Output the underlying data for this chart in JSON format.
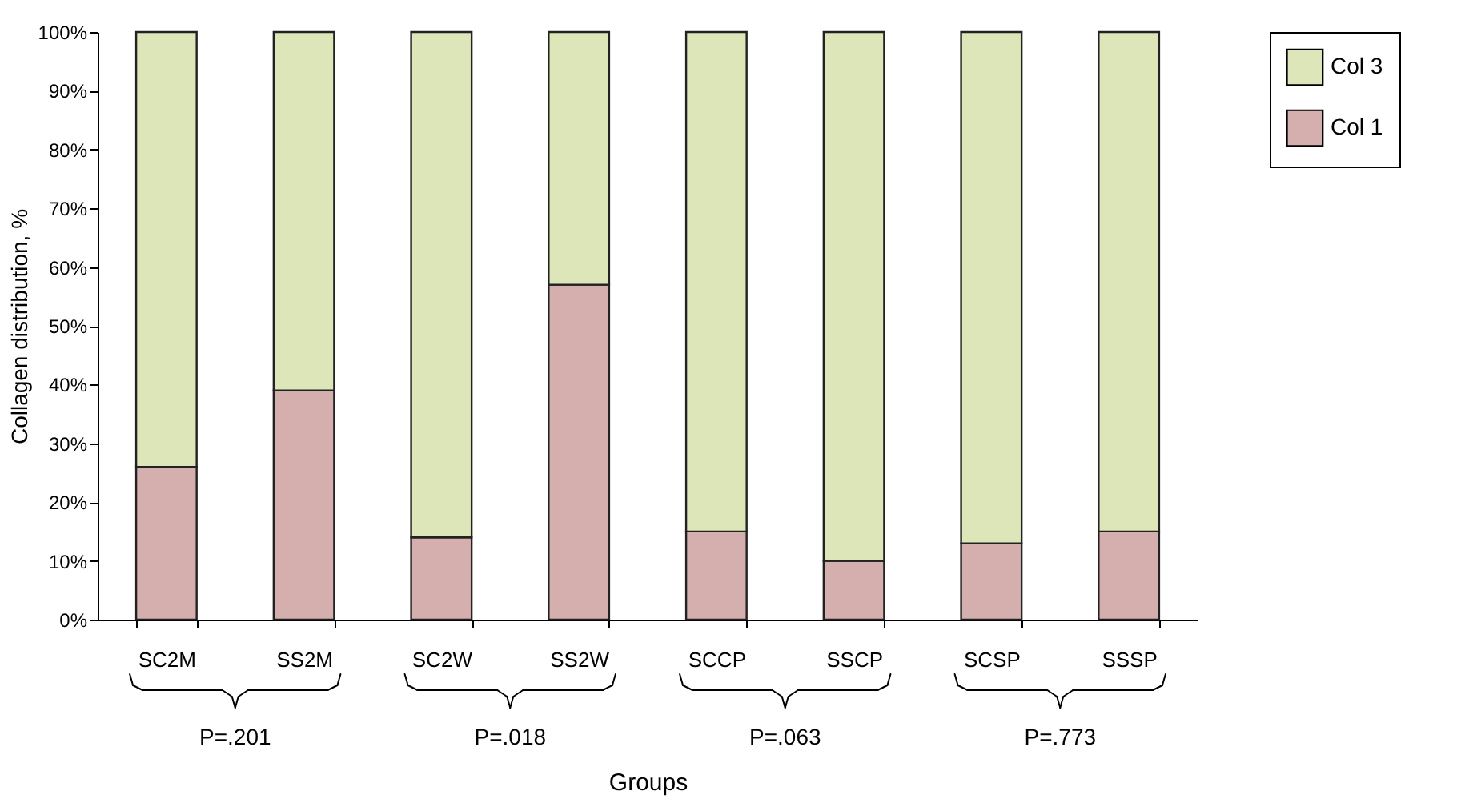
{
  "chart_data": {
    "type": "bar",
    "stacked": true,
    "xlabel": "Groups",
    "ylabel": "Collagen distribution, %",
    "categories": [
      "SC2M",
      "SS2M",
      "SC2W",
      "SS2W",
      "SCCP",
      "SSCP",
      "SCSP",
      "SSSP"
    ],
    "series": [
      {
        "name": "Col 1",
        "color": "#d5afad",
        "values": [
          26,
          39,
          14,
          57,
          15,
          10,
          13,
          15
        ]
      },
      {
        "name": "Col 3",
        "color": "#dce6b8",
        "values": [
          74,
          61,
          86,
          43,
          85,
          90,
          87,
          85
        ]
      }
    ],
    "ylim": [
      0,
      100
    ],
    "yticks": [
      {
        "value": 0,
        "label": "0%"
      },
      {
        "value": 10,
        "label": "10%"
      },
      {
        "value": 20,
        "label": "20%"
      },
      {
        "value": 30,
        "label": "30%"
      },
      {
        "value": 40,
        "label": "40%"
      },
      {
        "value": 50,
        "label": "50%"
      },
      {
        "value": 60,
        "label": "60%"
      },
      {
        "value": 70,
        "label": "70%"
      },
      {
        "value": 80,
        "label": "80%"
      },
      {
        "value": 90,
        "label": "90%"
      },
      {
        "value": 100,
        "label": "100%"
      }
    ],
    "annotations": [
      "P=.201",
      "P=.018",
      "P=.063",
      "P=.773"
    ],
    "grid": false,
    "legend": "right"
  }
}
